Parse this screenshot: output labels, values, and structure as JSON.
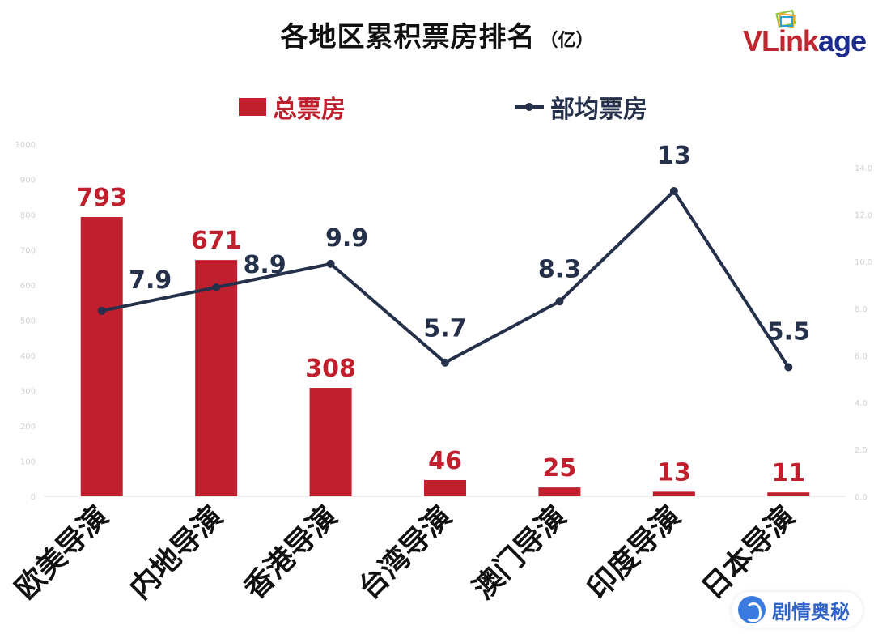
{
  "header": {
    "title": "各地区累积票房排名",
    "unit": "（亿）"
  },
  "brand": {
    "part1": "VLink",
    "part2": "age"
  },
  "watermark": {
    "text": "剧情奥秘"
  },
  "chart_data": {
    "type": "bar",
    "title": "各地区累积票房排名（亿）",
    "categories": [
      "欧美导演",
      "内地导演",
      "香港导演",
      "台湾导演",
      "澳门导演",
      "印度导演",
      "日本导演"
    ],
    "series": [
      {
        "name": "总票房",
        "type": "bar",
        "axis": "left",
        "color": "#c0202e",
        "values": [
          793,
          671,
          308,
          46,
          25,
          13,
          11
        ]
      },
      {
        "name": "部均票房",
        "type": "line",
        "axis": "right",
        "color": "#25304a",
        "values": [
          7.9,
          8.9,
          9.9,
          5.7,
          8.3,
          13,
          5.5
        ]
      }
    ],
    "y_left": {
      "range": [
        0,
        1000
      ],
      "ticks": [
        "0",
        "100",
        "200",
        "300",
        "400",
        "500",
        "600",
        "700",
        "800",
        "900",
        "1000"
      ]
    },
    "y_right": {
      "range": [
        0,
        15
      ],
      "ticks": [
        "0.0",
        "2.0",
        "4.0",
        "6.0",
        "8.0",
        "10.0",
        "12.0",
        "14.0"
      ]
    },
    "grid": false,
    "legend_position": "top"
  }
}
